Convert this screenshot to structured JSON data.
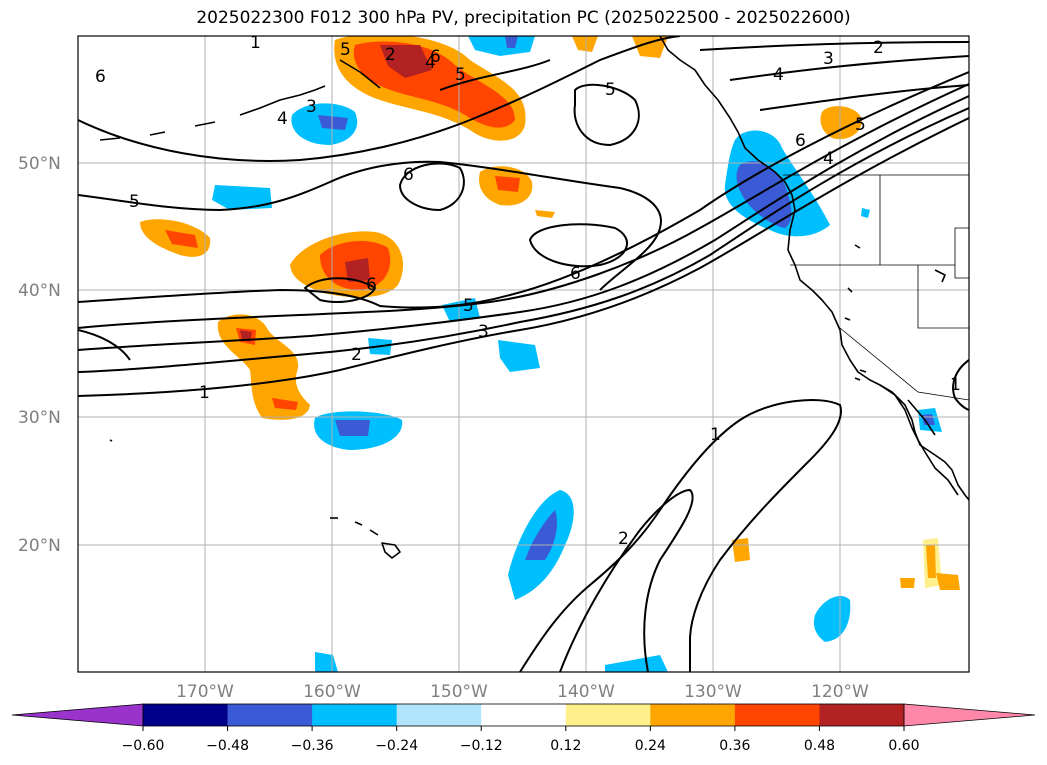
{
  "title": "2025022300 F012 300 hPa PV, precipitation PC (2025022500 - 2025022600)",
  "lat_labels": [
    "50°N",
    "40°N",
    "30°N",
    "20°N"
  ],
  "lon_labels": [
    "170°W",
    "160°W",
    "150°W",
    "140°W",
    "130°W",
    "120°W"
  ],
  "colorbar": {
    "ticks": [
      "−0.60",
      "−0.48",
      "−0.36",
      "−0.24",
      "−0.12",
      "0.12",
      "0.24",
      "0.36",
      "0.48",
      "0.60"
    ],
    "under_color": "#9933cc",
    "over_color": "#ff88aa",
    "colors": [
      "#00008b",
      "#3b5bd6",
      "#00bfff",
      "#b0e4fa",
      "#ffffff",
      "#fff08c",
      "#ffa500",
      "#ff4500",
      "#b22222"
    ]
  },
  "contour_labels": [
    "1",
    "2",
    "3",
    "4",
    "5",
    "6",
    "6",
    "5",
    "6",
    "5",
    "4",
    "3",
    "2",
    "1",
    "2",
    "3",
    "4",
    "5",
    "6",
    "6",
    "5",
    "4",
    "5",
    "6",
    "1",
    "2",
    "1"
  ],
  "colors": {
    "grid": "#b0b0b0",
    "coast": "#000000",
    "contour": "#000000",
    "positive_light": "#fff08c",
    "positive_mid": "#ffa500",
    "positive_strong": "#ff4500",
    "positive_max": "#b22222",
    "negative_light": "#b0e4fa",
    "negative_mid": "#00bfff",
    "negative_strong": "#3b5bd6"
  }
}
